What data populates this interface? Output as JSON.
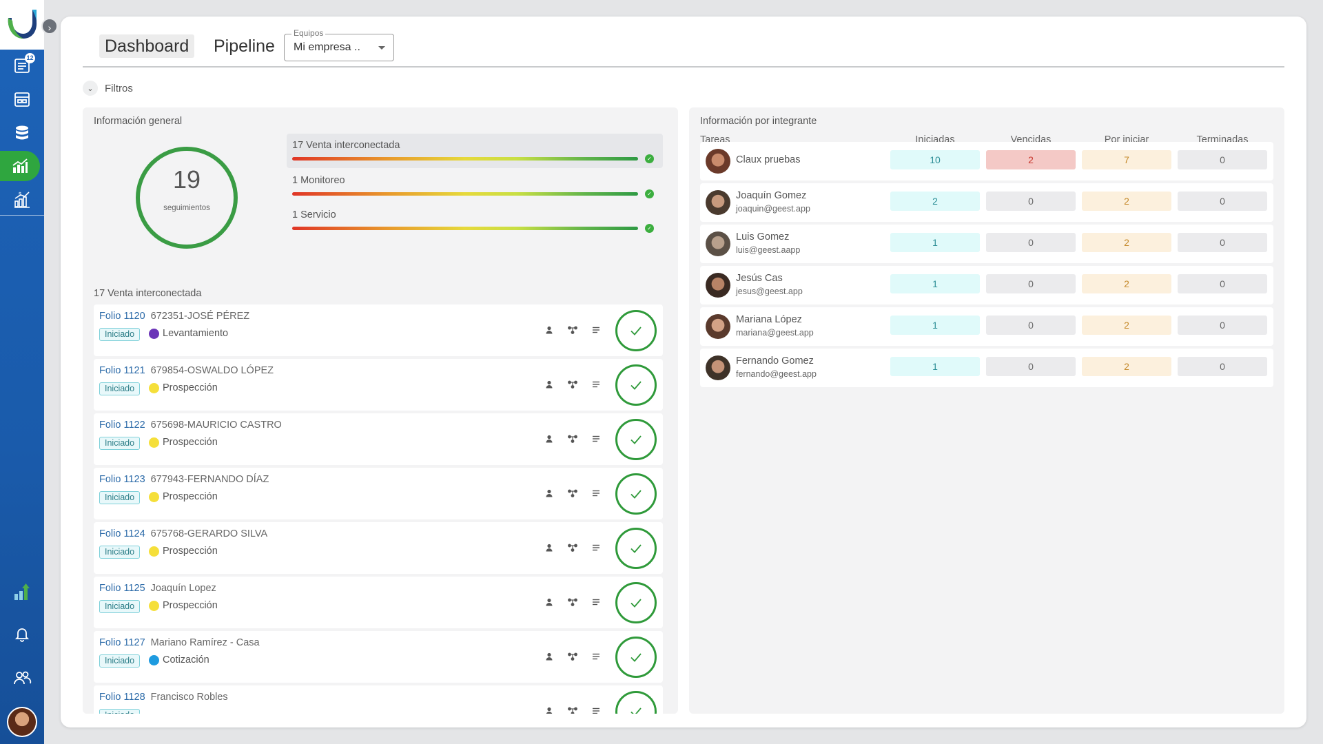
{
  "sidebar": {
    "badge_count": "12",
    "icons": [
      "tasks-icon",
      "calendar-icon",
      "database-icon",
      "analytics-icon",
      "finance-chart-icon",
      "growth-icon",
      "bell-icon",
      "team-icon"
    ]
  },
  "header": {
    "tabs": [
      "Dashboard",
      "Pipeline"
    ],
    "active_tab": "Dashboard",
    "team_select": {
      "label": "Equipos",
      "value": "Mi empresa .."
    }
  },
  "filters": {
    "label": "Filtros"
  },
  "general": {
    "title": "Información general",
    "total": "19",
    "total_label": "seguimientos",
    "processes": [
      {
        "label": "17  Venta interconectada"
      },
      {
        "label": "1  Monitoreo"
      },
      {
        "label": "1  Servicio"
      }
    ]
  },
  "list": {
    "title": "17 Venta interconectada",
    "status_tag": "Iniciado",
    "items": [
      {
        "folio": "Folio 1120",
        "name": "672351-JOSÉ PÉREZ",
        "stage": "Levantamiento",
        "stage_color": "#6b35b8"
      },
      {
        "folio": "Folio 1121",
        "name": "679854-OSWALDO LÓPEZ",
        "stage": "Prospección",
        "stage_color": "#f5df3a"
      },
      {
        "folio": "Folio 1122",
        "name": "675698-MAURICIO CASTRO",
        "stage": "Prospección",
        "stage_color": "#f5df3a"
      },
      {
        "folio": "Folio 1123",
        "name": "677943-FERNANDO DÍAZ",
        "stage": "Prospección",
        "stage_color": "#f5df3a"
      },
      {
        "folio": "Folio 1124",
        "name": "675768-GERARDO SILVA",
        "stage": "Prospección",
        "stage_color": "#f5df3a"
      },
      {
        "folio": "Folio 1125",
        "name": "Joaquín Lopez",
        "stage": "Prospección",
        "stage_color": "#f5df3a"
      },
      {
        "folio": "Folio 1127",
        "name": "Mariano Ramírez - Casa",
        "stage": "Cotización",
        "stage_color": "#1e9be0"
      },
      {
        "folio": "Folio 1128",
        "name": "Francisco Robles",
        "stage": "",
        "stage_color": ""
      }
    ]
  },
  "members": {
    "title": "Información por integrante",
    "headers": {
      "tasks": "Tareas",
      "started": "Iniciadas",
      "overdue": "Vencidas",
      "pending": "Por iniciar",
      "done": "Terminadas"
    },
    "rows": [
      {
        "name": "Claux pruebas",
        "email": "",
        "started": "10",
        "overdue": "2",
        "pending": "7",
        "done": "0",
        "overdue_alert": true
      },
      {
        "name": "Joaquín Gomez",
        "email": "joaquin@geest.app",
        "started": "2",
        "overdue": "0",
        "pending": "2",
        "done": "0",
        "overdue_alert": false
      },
      {
        "name": "Luis Gomez",
        "email": "luis@geest.aapp",
        "started": "1",
        "overdue": "0",
        "pending": "2",
        "done": "0",
        "overdue_alert": false
      },
      {
        "name": "Jesús Cas",
        "email": "jesus@geest.app",
        "started": "1",
        "overdue": "0",
        "pending": "2",
        "done": "0",
        "overdue_alert": false
      },
      {
        "name": "Mariana López",
        "email": "mariana@geest.app",
        "started": "1",
        "overdue": "0",
        "pending": "2",
        "done": "0",
        "overdue_alert": false
      },
      {
        "name": "Fernando Gomez",
        "email": "fernando@geest.app",
        "started": "1",
        "overdue": "0",
        "pending": "2",
        "done": "0",
        "overdue_alert": false
      }
    ]
  },
  "colors": {
    "brand_blue": "#1d63b8",
    "success_green": "#2f9a3a",
    "link_blue": "#2b6aa8"
  }
}
